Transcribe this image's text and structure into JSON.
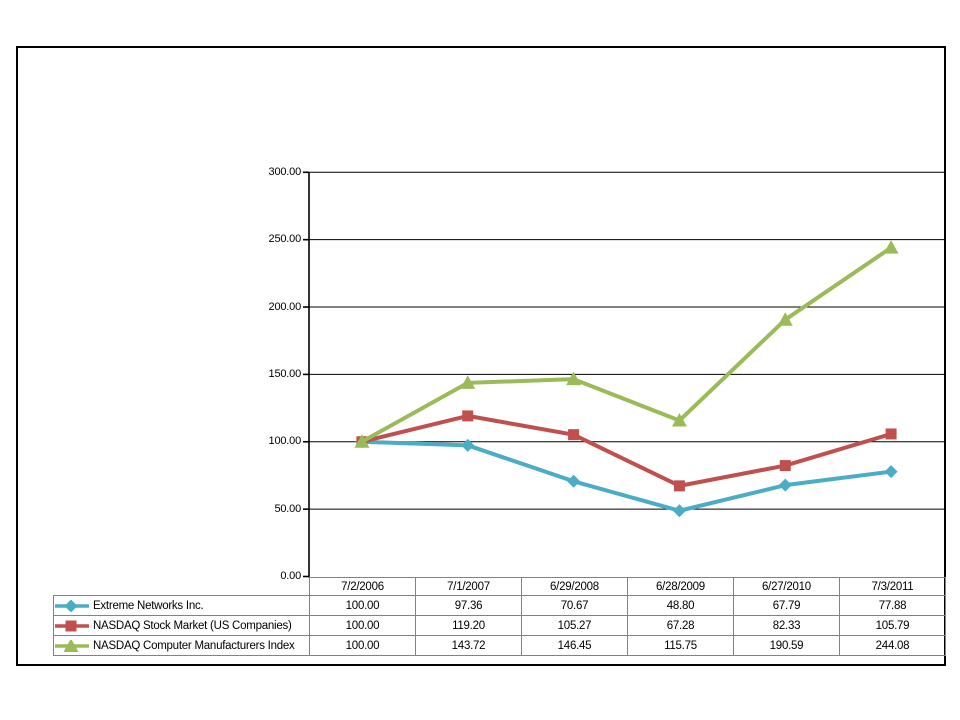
{
  "window": {
    "background_color": "#ffffff",
    "page_border_color": "#000000",
    "table_border_color": "#828282",
    "gridline_color": "#000000"
  },
  "chart_data": {
    "type": "line",
    "title": "",
    "xlabel": "",
    "ylabel": "",
    "categories": [
      "7/2/2006",
      "7/1/2007",
      "6/29/2008",
      "6/28/2009",
      "6/27/2010",
      "7/3/2011"
    ],
    "series": [
      {
        "name": "Extreme Networks Inc.",
        "color": "#4BACC6",
        "marker": "diamond",
        "values": [
          "100.00",
          "97.36",
          "70.67",
          "48.80",
          "67.79",
          "77.88"
        ]
      },
      {
        "name": "NASDAQ Stock Market (US Companies)",
        "color": "#C0504D",
        "marker": "square",
        "values": [
          "100.00",
          "119.20",
          "105.27",
          "67.28",
          "82.33",
          "105.79"
        ]
      },
      {
        "name": "NASDAQ Computer Manufacturers Index",
        "color": "#9BBB59",
        "marker": "triangle",
        "values": [
          "100.00",
          "143.72",
          "146.45",
          "115.75",
          "190.59",
          "244.08"
        ]
      }
    ],
    "ylim": [
      0,
      300
    ],
    "ytick_step": 50,
    "yticks": [
      "0.00",
      "50.00",
      "100.00",
      "150.00",
      "200.00",
      "250.00",
      "300.00"
    ],
    "grid": true,
    "legend_position": "table-left-column"
  }
}
